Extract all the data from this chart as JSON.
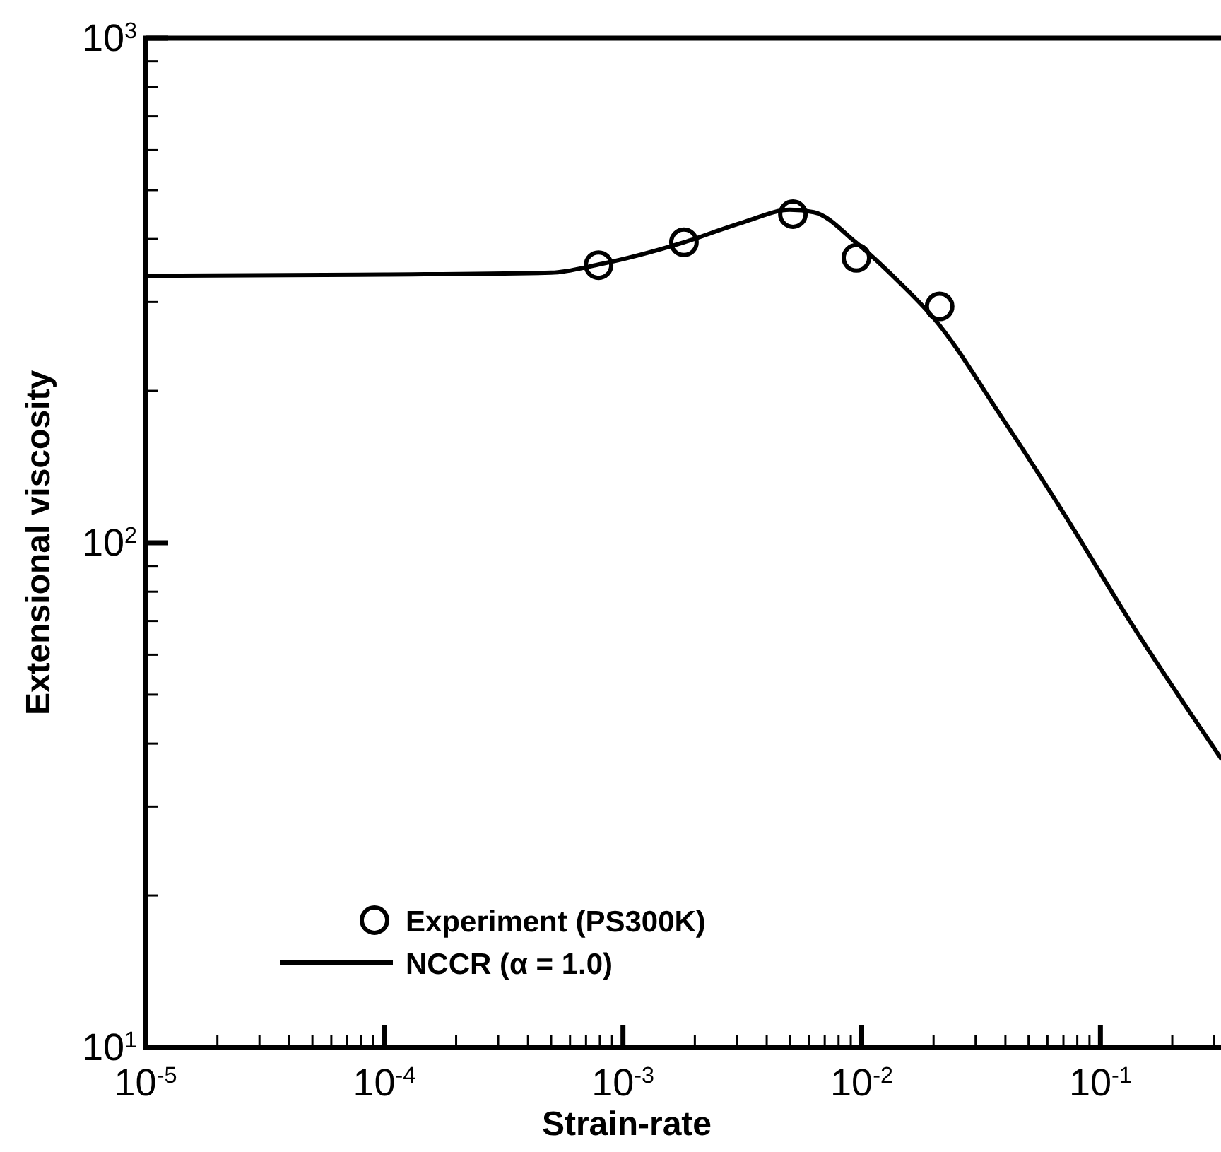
{
  "chart_data": {
    "type": "line",
    "xlabel": "Strain-rate",
    "ylabel": "Extensional viscosity",
    "log": "xy",
    "xlim": [
      1e-05,
      0.32
    ],
    "ylim": [
      10,
      1000
    ],
    "xticks": [
      {
        "value": 1e-05,
        "label": "10$^{-5}$"
      },
      {
        "value": 2e-05,
        "label": null
      },
      {
        "value": 3e-05,
        "label": null
      },
      {
        "value": 4e-05,
        "label": null
      },
      {
        "value": 5e-05,
        "label": null
      },
      {
        "value": 6e-05,
        "label": null
      },
      {
        "value": 7e-05,
        "label": null
      },
      {
        "value": 8e-05,
        "label": null
      },
      {
        "value": 9e-05,
        "label": null
      },
      {
        "value": 0.0001,
        "label": "10$^{-4}$"
      },
      {
        "value": 0.0002,
        "label": null
      },
      {
        "value": 0.0003,
        "label": null
      },
      {
        "value": 0.0004,
        "label": null
      },
      {
        "value": 0.0005,
        "label": null
      },
      {
        "value": 0.0006,
        "label": null
      },
      {
        "value": 0.0007,
        "label": null
      },
      {
        "value": 0.0008,
        "label": null
      },
      {
        "value": 0.0009,
        "label": null
      },
      {
        "value": 0.001,
        "label": "10$^{-3}$"
      },
      {
        "value": 0.002,
        "label": null
      },
      {
        "value": 0.003,
        "label": null
      },
      {
        "value": 0.004,
        "label": null
      },
      {
        "value": 0.005,
        "label": null
      },
      {
        "value": 0.006,
        "label": null
      },
      {
        "value": 0.007,
        "label": null
      },
      {
        "value": 0.008,
        "label": null
      },
      {
        "value": 0.009,
        "label": null
      },
      {
        "value": 0.01,
        "label": "10$^{-2}$"
      },
      {
        "value": 0.02,
        "label": null
      },
      {
        "value": 0.03,
        "label": null
      },
      {
        "value": 0.04,
        "label": null
      },
      {
        "value": 0.05,
        "label": null
      },
      {
        "value": 0.06,
        "label": null
      },
      {
        "value": 0.07,
        "label": null
      },
      {
        "value": 0.08,
        "label": null
      },
      {
        "value": 0.09,
        "label": null
      },
      {
        "value": 0.1,
        "label": "10$^{-1}$"
      },
      {
        "value": 0.2,
        "label": null
      },
      {
        "value": 0.3,
        "label": null
      }
    ],
    "yticks": [
      {
        "value": 10,
        "label": "10$^{1}$"
      },
      {
        "value": 20,
        "label": null
      },
      {
        "value": 30,
        "label": null
      },
      {
        "value": 40,
        "label": null
      },
      {
        "value": 50,
        "label": null
      },
      {
        "value": 60,
        "label": null
      },
      {
        "value": 70,
        "label": null
      },
      {
        "value": 80,
        "label": null
      },
      {
        "value": 90,
        "label": null
      },
      {
        "value": 100,
        "label": "10$^{2}$"
      },
      {
        "value": 200,
        "label": null
      },
      {
        "value": 300,
        "label": null
      },
      {
        "value": 400,
        "label": null
      },
      {
        "value": 500,
        "label": null
      },
      {
        "value": 600,
        "label": null
      },
      {
        "value": 700,
        "label": null
      },
      {
        "value": 800,
        "label": null
      },
      {
        "value": 900,
        "label": null
      },
      {
        "value": 1000,
        "label": "10$^{3}$"
      }
    ],
    "grid": false,
    "legend": "bottom left",
    "series": [
      {
        "name": "Experiment (PS300K)",
        "type": "scatter",
        "marker": "circle",
        "color": "#000000",
        "x": [
          0.00079,
          0.0018,
          0.00515,
          0.0095,
          0.0212
        ],
        "values": [
          355,
          394,
          448,
          367,
          294
        ]
      },
      {
        "name": "NCCR (α = 1.0)",
        "type": "line",
        "line_style": "solid",
        "marker": "none",
        "color": "#000000",
        "x": [
          1e-05,
          0.0001,
          0.0005,
          0.00079,
          0.0018,
          0.0032,
          0.005,
          0.0063,
          0.0095,
          0.0145,
          0.02,
          0.039,
          0.0705,
          0.134,
          0.32
        ],
        "values": [
          338,
          340,
          343,
          356,
          394,
          432,
          457,
          452,
          393,
          327,
          279,
          176,
          114,
          69.5,
          37.4
        ]
      }
    ]
  }
}
